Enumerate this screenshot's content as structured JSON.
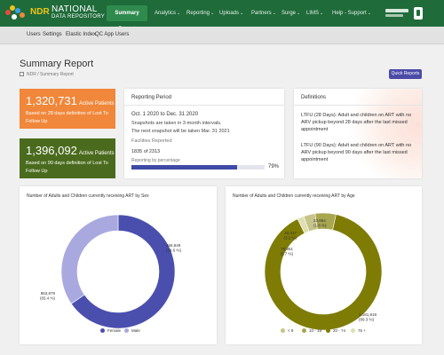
{
  "app": {
    "brand_short": "NDR",
    "brand_line1": "NATIONAL",
    "brand_line2": "DATA REPOSITORY"
  },
  "nav": {
    "items": [
      {
        "label": "Summary Report",
        "active": true,
        "dropdown": false
      },
      {
        "label": "Analytics",
        "dropdown": true
      },
      {
        "label": "Reporting",
        "dropdown": true
      },
      {
        "label": "Uploads",
        "dropdown": true
      },
      {
        "label": "Partners",
        "dropdown": true
      },
      {
        "label": "Surge",
        "dropdown": true
      },
      {
        "label": "LIMS",
        "dropdown": true
      },
      {
        "label": "Help - Support",
        "dropdown": true
      }
    ]
  },
  "subnav": {
    "items": [
      "Users",
      "Settings",
      "Elastic Index",
      "QC App Users"
    ]
  },
  "page": {
    "title": "Summary Report",
    "breadcrumb": [
      "NDR",
      "Summary Report"
    ],
    "quick_reports_label": "Quick Reports"
  },
  "stats": [
    {
      "value": "1,320,731",
      "label": "Active Patients",
      "desc": "Based on 28 days definition of Lost To Follow Up",
      "color": "#f0873a"
    },
    {
      "value": "1,396,092",
      "label": "Active Patients",
      "desc": "Based on 90 days definition of Lost To Follow Up",
      "color": "#4a6b1d"
    }
  ],
  "reporting_period": {
    "heading": "Reporting Period",
    "range": "Oct. 1 2020 to Dec. 31 2020",
    "note1": "Snapshots are taken in 3-month intervals.",
    "note2": "The next snapshot will be taken Mar. 31 2021",
    "facilities_label": "Facilities Reported",
    "facilities_value": "1835 of 2313",
    "pct_label": "Reporting by percentage",
    "pct_value": 79,
    "pct_text": "79%"
  },
  "definitions": {
    "heading": "Definitions",
    "items": [
      {
        "term": "LTFU (28 Days):",
        "text": "Adult and children on ART with no ARV pickup beyond 28 days after the last missed appointment"
      },
      {
        "term": "LTFU (90 Days):",
        "text": "Adult and children on ART with no ARV pickup beyond 90 days after the last missed appointment"
      }
    ]
  },
  "charts": [
    {
      "title": "Number of Adults and Children currently receiving ART by Sex",
      "chart_data": {
        "type": "pie",
        "donut": true,
        "categories": [
          "Female",
          "Male"
        ],
        "values": [
          863879,
          456848
        ],
        "labels": [
          "863,879 (65.4 %)",
          "456,848 (34.6 %)"
        ],
        "colors": [
          "#4a4fae",
          "#a9a9e0"
        ],
        "legend": "bottom"
      }
    },
    {
      "title": "Number of Adults and Children currently receiving ART by Age",
      "chart_data": {
        "type": "pie",
        "donut": true,
        "categories": [
          "< 9",
          "10 - 19",
          "20 - 74",
          "75 +"
        ],
        "values": [
          42417,
          75951,
          1181819,
          23864
        ],
        "labels": [
          "42,417 (3.2 %)",
          "75,951 (5.7 %)",
          "1,181,819 (89.3 %)",
          "23,864 (1.8 %)"
        ],
        "colors": [
          "#c7c489",
          "#a8a64e",
          "#7f7c05",
          "#e0dfb3"
        ],
        "legend": "bottom"
      }
    }
  ]
}
